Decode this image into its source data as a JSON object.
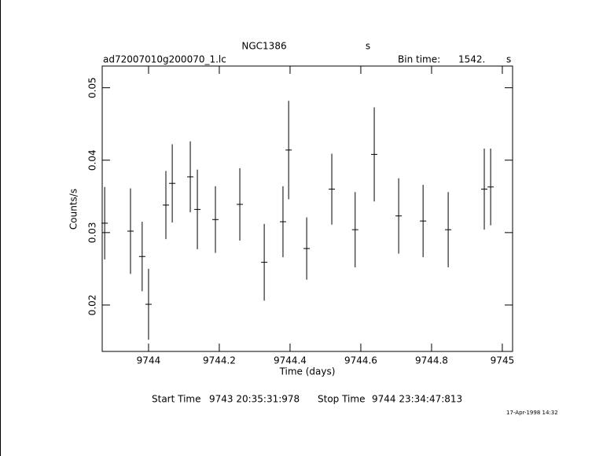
{
  "chart_data": {
    "type": "errorbar",
    "title": "NGC1386",
    "title_unit": "s",
    "subtitle": "ad72007010g200070_1.lc",
    "bin_time_label": "Bin time:",
    "bin_time": "1542.",
    "bin_time_unit": "s",
    "x_label": "Time (days)",
    "y_label": "Counts/s",
    "start_label": "Start Time",
    "start_time": "9743 20:35:31:978",
    "stop_label": "Stop Time",
    "stop_time": "9744 23:34:47:813",
    "date_stamp": "17-Apr-1998 14:32",
    "color": "#000000",
    "x": [
      9743.876,
      9743.949,
      9743.982,
      9744.0,
      9744.049,
      9744.067,
      9744.118,
      9744.138,
      9744.189,
      9744.258,
      9744.327,
      9744.38,
      9744.396,
      9744.447,
      9744.518,
      9744.584,
      9744.638,
      9744.707,
      9744.776,
      9744.847,
      9744.949,
      9744.967
    ],
    "values": [
      0.0313,
      0.0302,
      0.0267,
      0.0201,
      0.0338,
      0.0368,
      0.0377,
      0.0332,
      0.0318,
      0.0339,
      0.0259,
      0.0315,
      0.0414,
      0.0278,
      0.036,
      0.0304,
      0.0408,
      0.0323,
      0.0316,
      0.0304,
      0.036,
      0.0363
    ],
    "errors": [
      0.005,
      0.0059,
      0.0048,
      0.0049,
      0.0047,
      0.0054,
      0.0049,
      0.0055,
      0.0046,
      0.005,
      0.0053,
      0.0049,
      0.0068,
      0.0043,
      0.0049,
      0.0052,
      0.0065,
      0.0052,
      0.005,
      0.0052,
      0.0056,
      0.0053
    ],
    "xerr": 0.0089,
    "xlim": [
      9743.869,
      9745.029
    ],
    "ylim": [
      0.01359,
      0.053
    ],
    "xticks": [
      9744,
      9744.2,
      9744.4,
      9744.6,
      9744.8,
      9745
    ],
    "yticks": [
      0.02,
      0.03,
      0.04,
      0.05
    ]
  }
}
